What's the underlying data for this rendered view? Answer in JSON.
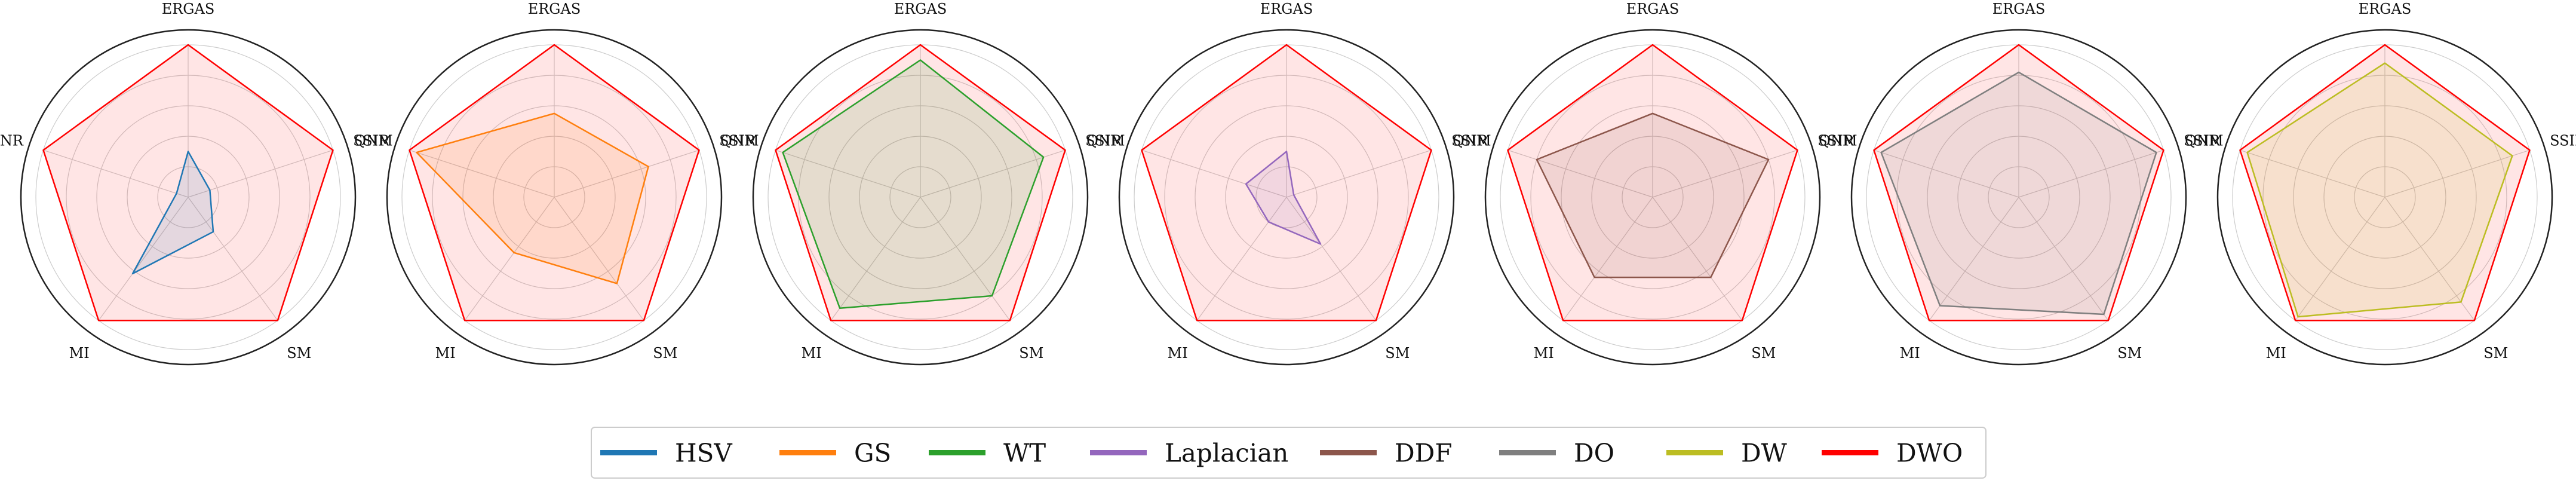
{
  "chart_data": {
    "type": "radar",
    "axes": [
      "ERGAS",
      "SSIM",
      "SM",
      "MI",
      "QNR"
    ],
    "radial_range": [
      0,
      1
    ],
    "grid": true,
    "reference_series": "DWO",
    "series": [
      {
        "name": "HSV",
        "color": "#1f77b4",
        "values": [
          0.3,
          0.15,
          0.28,
          0.62,
          0.08
        ]
      },
      {
        "name": "GS",
        "color": "#ff7f0e",
        "values": [
          0.55,
          0.65,
          0.7,
          0.45,
          0.95
        ]
      },
      {
        "name": "WT",
        "color": "#2ca02c",
        "values": [
          0.9,
          0.85,
          0.8,
          0.9,
          0.95
        ]
      },
      {
        "name": "Laplacian",
        "color": "#9467bd",
        "values": [
          0.3,
          0.05,
          0.38,
          0.2,
          0.28
        ]
      },
      {
        "name": "DDF",
        "color": "#8c564b",
        "values": [
          0.55,
          0.8,
          0.65,
          0.65,
          0.8
        ]
      },
      {
        "name": "DO",
        "color": "#7f7f7f",
        "values": [
          0.82,
          0.95,
          0.95,
          0.88,
          0.95
        ]
      },
      {
        "name": "DW",
        "color": "#bcbd22",
        "values": [
          0.88,
          0.88,
          0.85,
          0.97,
          0.95
        ]
      },
      {
        "name": "DWO",
        "color": "#ff0000",
        "values": [
          1.0,
          1.0,
          1.0,
          1.0,
          1.0
        ]
      }
    ],
    "legend_position": "bottom-center"
  }
}
